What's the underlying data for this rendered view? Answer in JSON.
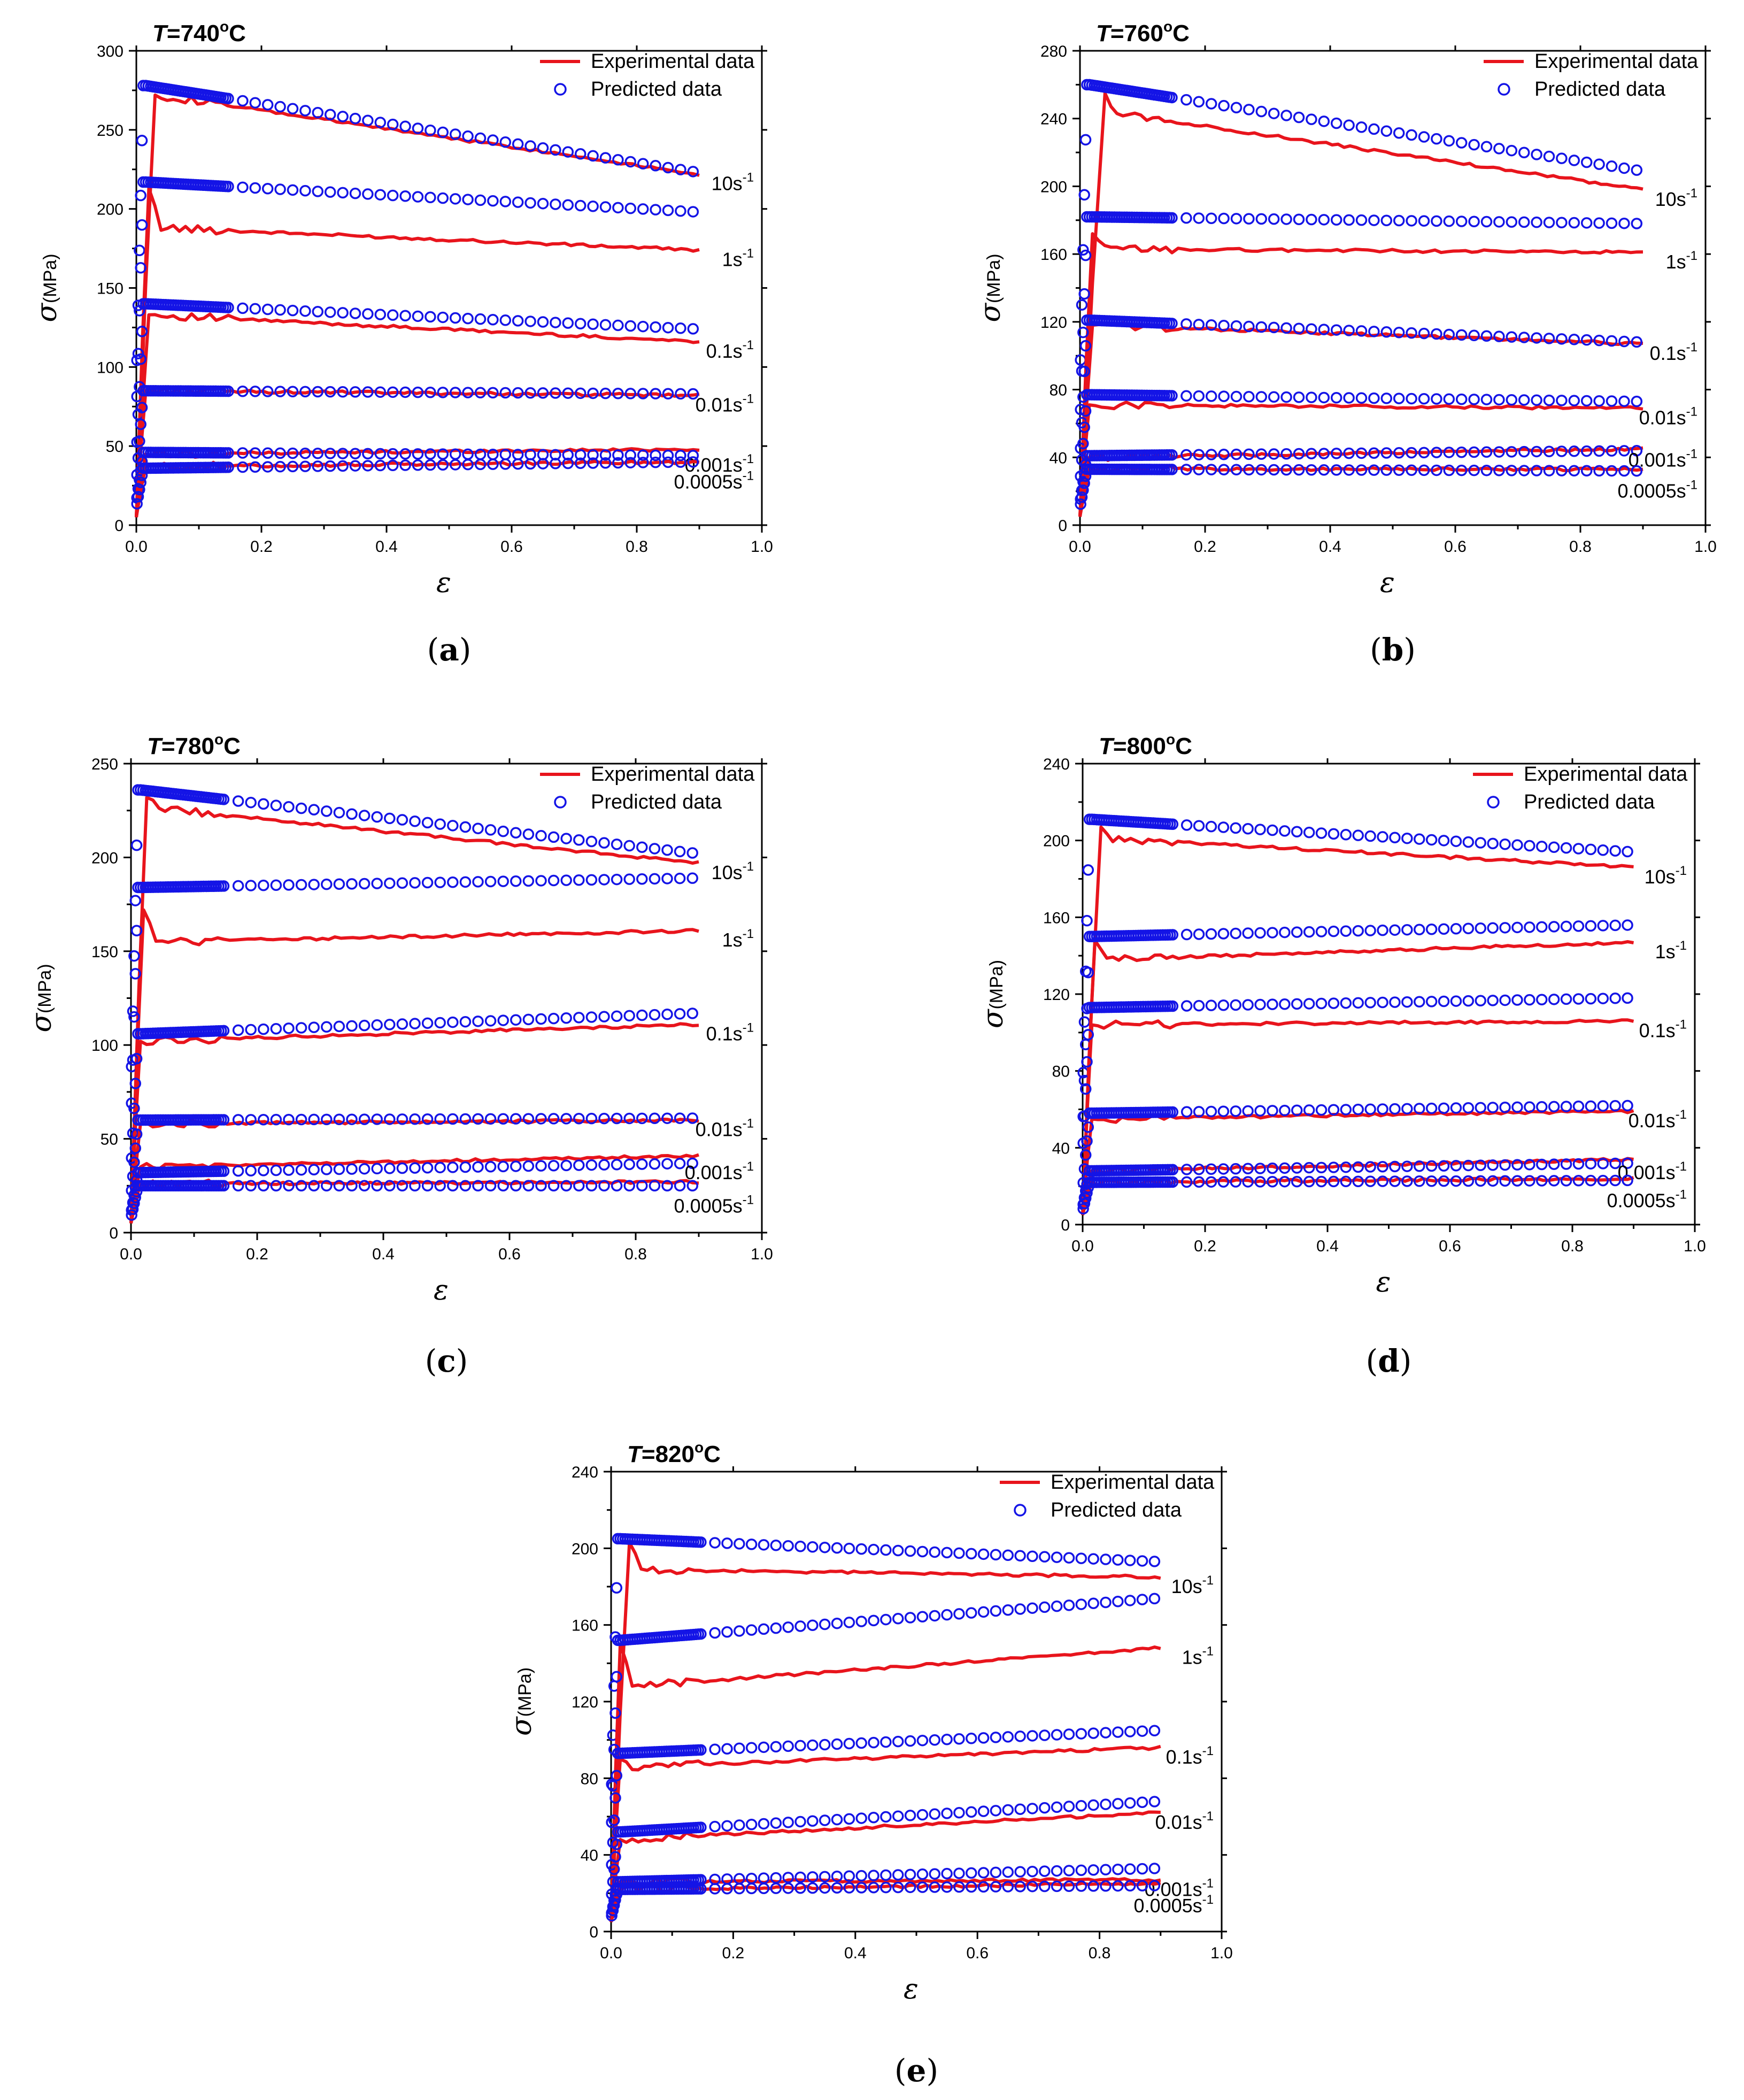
{
  "legend": {
    "experimental": "Experimental data",
    "predicted": "Predicted data",
    "experimental_color": "#e8141c",
    "predicted_color": "#1414e6"
  },
  "axes": {
    "x_title": "ε",
    "y_title_symbol": "σ",
    "y_title_unit": "(MPa)",
    "x_ticks": [
      "0.0",
      "0.2",
      "0.4",
      "0.6",
      "0.8",
      "1.0"
    ]
  },
  "chart_data": [
    {
      "type": "line",
      "id": "a",
      "temperature_symbol": "T",
      "temperature_value": "=740",
      "temperature_unit": "o",
      "temperature_suffix": "C",
      "caption_open": "(",
      "caption_letter": "a",
      "caption_close": ")",
      "xlim": [
        0,
        1.0
      ],
      "ylim": [
        0,
        300
      ],
      "y_ticks": [
        "0",
        "50",
        "100",
        "150",
        "200",
        "250",
        "300"
      ],
      "x_ticks_values": [
        0,
        0.2,
        0.4,
        0.6,
        0.8,
        1.0
      ],
      "y_ticks_values": [
        0,
        50,
        100,
        150,
        200,
        250,
        300
      ],
      "series": [
        {
          "rate": "10s",
          "exp": {
            "start": 5,
            "peak": 272,
            "peak_x": 0.03,
            "end": 222
          },
          "pred": {
            "plateau": 278,
            "end": 223
          }
        },
        {
          "rate": "1s",
          "exp": {
            "start": 5,
            "peak": 213,
            "peak_x": 0.02,
            "dip": 188,
            "end": 174
          },
          "pred": {
            "plateau": 217,
            "end": 198
          }
        },
        {
          "rate": "0.1s",
          "exp": {
            "start": 5,
            "peak": 133,
            "peak_x": 0.02,
            "end": 116
          },
          "pred": {
            "plateau": 140,
            "end": 124
          }
        },
        {
          "rate": "0.01s",
          "exp": {
            "start": 5,
            "peak": 85,
            "peak_x": 0.015,
            "end": 82
          },
          "pred": {
            "plateau": 85,
            "end": 83
          }
        },
        {
          "rate": "0.001s",
          "exp": {
            "start": 5,
            "peak": 45,
            "peak_x": 0.015,
            "end": 48
          },
          "pred": {
            "plateau": 46,
            "end": 44
          }
        },
        {
          "rate": "0.0005s",
          "exp": {
            "start": 5,
            "peak": 37,
            "peak_x": 0.015,
            "end": 40
          },
          "pred": {
            "plateau": 36,
            "end": 40
          }
        }
      ]
    },
    {
      "type": "line",
      "id": "b",
      "temperature_symbol": "T",
      "temperature_value": "=760",
      "temperature_unit": "o",
      "temperature_suffix": "C",
      "caption_open": "(",
      "caption_letter": "b",
      "caption_close": ")",
      "xlim": [
        0,
        1.0
      ],
      "ylim": [
        0,
        280
      ],
      "y_ticks": [
        "0",
        "40",
        "80",
        "120",
        "160",
        "200",
        "240",
        "280"
      ],
      "x_ticks_values": [
        0,
        0.2,
        0.4,
        0.6,
        0.8,
        1.0
      ],
      "y_ticks_values": [
        0,
        40,
        80,
        120,
        160,
        200,
        240,
        280
      ],
      "series": [
        {
          "rate": "10s",
          "exp": {
            "start": 5,
            "peak": 255,
            "peak_x": 0.04,
            "dip": 243,
            "end": 198
          },
          "pred": {
            "plateau": 260,
            "end": 209
          }
        },
        {
          "rate": "1s",
          "exp": {
            "start": 5,
            "peak": 172,
            "peak_x": 0.02,
            "dip": 163,
            "end": 161
          },
          "pred": {
            "plateau": 182,
            "end": 178
          }
        },
        {
          "rate": "0.1s",
          "exp": {
            "start": 5,
            "peak": 118,
            "peak_x": 0.02,
            "end": 107
          },
          "pred": {
            "plateau": 121,
            "end": 108
          }
        },
        {
          "rate": "0.01s",
          "exp": {
            "start": 5,
            "peak": 71,
            "peak_x": 0.015,
            "end": 69
          },
          "pred": {
            "plateau": 77,
            "end": 73
          }
        },
        {
          "rate": "0.001s",
          "exp": {
            "start": 5,
            "peak": 40,
            "peak_x": 0.015,
            "end": 45
          },
          "pred": {
            "plateau": 41,
            "end": 44
          }
        },
        {
          "rate": "0.0005s",
          "exp": {
            "start": 5,
            "peak": 33,
            "peak_x": 0.015,
            "end": 33
          },
          "pred": {
            "plateau": 33,
            "end": 32
          }
        }
      ]
    },
    {
      "type": "line",
      "id": "c",
      "temperature_symbol": "T",
      "temperature_value": "=780",
      "temperature_unit": "o",
      "temperature_suffix": "C",
      "caption_open": "(",
      "caption_letter": "c",
      "caption_close": ")",
      "xlim": [
        0,
        1.0
      ],
      "ylim": [
        0,
        250
      ],
      "y_ticks": [
        "0",
        "50",
        "100",
        "150",
        "200",
        "250"
      ],
      "x_ticks_values": [
        0,
        0.2,
        0.4,
        0.6,
        0.8,
        1.0
      ],
      "y_ticks_values": [
        0,
        50,
        100,
        150,
        200,
        250
      ],
      "series": [
        {
          "rate": "10s",
          "exp": {
            "start": 5,
            "peak": 232,
            "peak_x": 0.025,
            "dip": 226,
            "end": 197
          },
          "pred": {
            "plateau": 236,
            "end": 202
          }
        },
        {
          "rate": "1s",
          "exp": {
            "start": 5,
            "peak": 172,
            "peak_x": 0.02,
            "dip": 155,
            "end": 161
          },
          "pred": {
            "plateau": 184,
            "end": 189
          }
        },
        {
          "rate": "0.1s",
          "exp": {
            "start": 5,
            "peak": 102,
            "peak_x": 0.015,
            "end": 111
          },
          "pred": {
            "plateau": 106,
            "end": 117
          }
        },
        {
          "rate": "0.01s",
          "exp": {
            "start": 5,
            "peak": 58,
            "peak_x": 0.015,
            "end": 60
          },
          "pred": {
            "plateau": 60,
            "end": 61
          }
        },
        {
          "rate": "0.001s",
          "exp": {
            "start": 5,
            "peak": 35,
            "peak_x": 0.015,
            "end": 41
          },
          "pred": {
            "plateau": 32,
            "end": 37
          }
        },
        {
          "rate": "0.0005s",
          "exp": {
            "start": 5,
            "peak": 26,
            "peak_x": 0.015,
            "end": 27
          },
          "pred": {
            "plateau": 25,
            "end": 25
          }
        }
      ]
    },
    {
      "type": "line",
      "id": "d",
      "temperature_symbol": "T",
      "temperature_value": "=800",
      "temperature_unit": "o",
      "temperature_suffix": "C",
      "caption_open": "(",
      "caption_letter": "d",
      "caption_close": ")",
      "xlim": [
        0,
        1.0
      ],
      "ylim": [
        0,
        240
      ],
      "y_ticks": [
        "0",
        "40",
        "80",
        "120",
        "160",
        "200",
        "240"
      ],
      "x_ticks_values": [
        0,
        0.2,
        0.4,
        0.6,
        0.8,
        1.0
      ],
      "y_ticks_values": [
        0,
        40,
        80,
        120,
        160,
        200,
        240
      ],
      "series": [
        {
          "rate": "10s",
          "exp": {
            "start": 5,
            "peak": 207,
            "peak_x": 0.03,
            "dip": 201,
            "end": 186
          },
          "pred": {
            "plateau": 211,
            "end": 194
          }
        },
        {
          "rate": "1s",
          "exp": {
            "start": 5,
            "peak": 148,
            "peak_x": 0.02,
            "dip": 138,
            "end": 147
          },
          "pred": {
            "plateau": 150,
            "end": 156
          }
        },
        {
          "rate": "0.1s",
          "exp": {
            "start": 5,
            "peak": 104,
            "peak_x": 0.015,
            "end": 106
          },
          "pred": {
            "plateau": 113,
            "end": 118
          }
        },
        {
          "rate": "0.01s",
          "exp": {
            "start": 5,
            "peak": 55,
            "peak_x": 0.015,
            "end": 59
          },
          "pred": {
            "plateau": 58,
            "end": 62
          }
        },
        {
          "rate": "0.001s",
          "exp": {
            "start": 5,
            "peak": 28,
            "peak_x": 0.015,
            "end": 34
          },
          "pred": {
            "plateau": 28,
            "end": 32
          }
        },
        {
          "rate": "0.0005s",
          "exp": {
            "start": 5,
            "peak": 22,
            "peak_x": 0.015,
            "end": 24
          },
          "pred": {
            "plateau": 22,
            "end": 23
          }
        }
      ]
    },
    {
      "type": "line",
      "id": "e",
      "temperature_symbol": "T",
      "temperature_value": "=820",
      "temperature_unit": "o",
      "temperature_suffix": "C",
      "caption_open": "(",
      "caption_letter": "e",
      "caption_close": ")",
      "xlim": [
        0,
        1.0
      ],
      "ylim": [
        0,
        240
      ],
      "y_ticks": [
        "0",
        "40",
        "80",
        "120",
        "160",
        "200",
        "240"
      ],
      "x_ticks_values": [
        0,
        0.2,
        0.4,
        0.6,
        0.8,
        1.0
      ],
      "y_ticks_values": [
        0,
        40,
        80,
        120,
        160,
        200,
        240
      ],
      "series": [
        {
          "rate": "10s",
          "exp": {
            "start": 5,
            "peak": 203,
            "peak_x": 0.03,
            "dip": 189,
            "end": 185
          },
          "pred": {
            "plateau": 205,
            "end": 193
          }
        },
        {
          "rate": "1s",
          "exp": {
            "start": 5,
            "peak": 150,
            "peak_x": 0.015,
            "dip": 128,
            "end": 148
          },
          "pred": {
            "plateau": 152,
            "end": 174
          }
        },
        {
          "rate": "0.1s",
          "exp": {
            "start": 5,
            "peak": 90,
            "peak_x": 0.015,
            "dip": 86,
            "end": 96
          },
          "pred": {
            "plateau": 93,
            "end": 105
          }
        },
        {
          "rate": "0.01s",
          "exp": {
            "start": 5,
            "peak": 48,
            "peak_x": 0.015,
            "end": 62
          },
          "pred": {
            "plateau": 52,
            "end": 68
          }
        },
        {
          "rate": "0.001s",
          "exp": {
            "start": 5,
            "peak": 26,
            "peak_x": 0.015,
            "end": 27
          },
          "pred": {
            "plateau": 26,
            "end": 33
          }
        },
        {
          "rate": "0.0005s",
          "exp": {
            "start": 5,
            "peak": 22,
            "peak_x": 0.015,
            "end": 25
          },
          "pred": {
            "plateau": 22,
            "end": 24
          }
        }
      ]
    }
  ]
}
